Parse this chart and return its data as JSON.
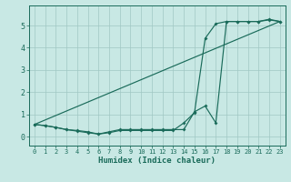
{
  "xlabel": "Humidex (Indice chaleur)",
  "xlim": [
    -0.5,
    23.5
  ],
  "ylim": [
    -0.4,
    5.9
  ],
  "xticks": [
    0,
    1,
    2,
    3,
    4,
    5,
    6,
    7,
    8,
    9,
    10,
    11,
    12,
    13,
    14,
    15,
    16,
    17,
    18,
    19,
    20,
    21,
    22,
    23
  ],
  "yticks": [
    0,
    1,
    2,
    3,
    4,
    5
  ],
  "background_color": "#c8e8e4",
  "line_color": "#1a6b5a",
  "grid_color": "#a0c8c4",
  "line1_x": [
    0,
    1,
    2,
    3,
    4,
    5,
    6,
    7,
    8,
    9,
    10,
    11,
    12,
    13,
    14,
    15,
    16,
    17,
    18,
    19,
    20,
    21,
    22,
    23
  ],
  "line1_y": [
    0.55,
    0.5,
    0.42,
    0.32,
    0.28,
    0.22,
    0.12,
    0.22,
    0.32,
    0.32,
    0.32,
    0.32,
    0.32,
    0.32,
    0.32,
    1.12,
    1.38,
    0.62,
    5.18,
    5.18,
    5.18,
    5.18,
    5.25,
    5.18
  ],
  "line2_x": [
    0,
    1,
    2,
    3,
    4,
    5,
    6,
    7,
    8,
    9,
    10,
    11,
    12,
    13,
    14,
    15,
    16,
    17,
    18,
    19,
    20,
    21,
    22,
    23
  ],
  "line2_y": [
    0.55,
    0.5,
    0.42,
    0.32,
    0.25,
    0.18,
    0.12,
    0.18,
    0.28,
    0.28,
    0.28,
    0.28,
    0.28,
    0.28,
    0.62,
    1.08,
    4.42,
    5.08,
    5.18,
    5.18,
    5.18,
    5.18,
    5.28,
    5.18
  ],
  "line3_x": [
    0,
    23
  ],
  "line3_y": [
    0.55,
    5.18
  ]
}
